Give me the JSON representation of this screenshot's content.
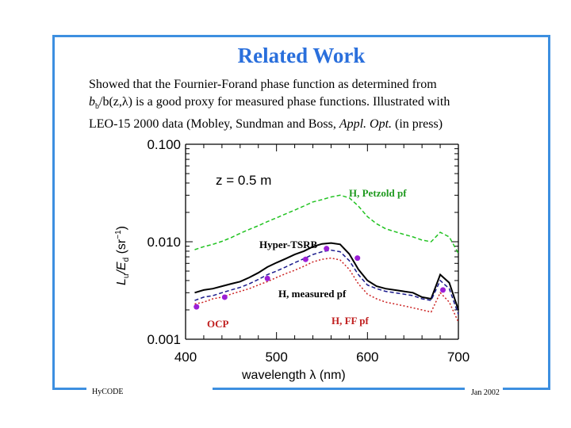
{
  "slide": {
    "title": "Related Work",
    "body_line1": "Showed that the Fournier-Forand phase function as determined from",
    "body_line2": "b",
    "body_line2_sub1": "b",
    "body_line2_b": "/b(z,",
    "body_line2_glyph": "λ",
    "body_line2_rest": ") is a good proxy for measured phase functions.  Illustrated with",
    "body_line3": "LEO-15 2000 data (Mobley, Sundman and Boss, ",
    "body_line3_italic": "Appl. Opt.",
    "body_line3_rest": " (in press)",
    "footer_left": "HyCODE",
    "footer_right": "Jan 2002"
  },
  "colors": {
    "frame": "#3d8fe0",
    "title": "#2a6fdc",
    "petzold": "#22c322",
    "hypertsrb": "#000000",
    "measured": "#1a1a8c",
    "ff": "#cc2222",
    "ocp": "#9b1fd6",
    "annotation_green": "#1f9a1f",
    "annotation_red": "#c02020"
  },
  "chart_data": {
    "type": "line",
    "xlabel": "wavelength  λ  (nm)",
    "ylabel": "L_u / E_d (sr^-1)",
    "ylabel_parts": [
      "L",
      "u",
      "/E",
      "d",
      " (sr",
      "−1",
      ")"
    ],
    "xlim": [
      400,
      700
    ],
    "ylim": [
      0.001,
      0.1
    ],
    "yscale": "log",
    "x_ticks": [
      "400",
      "500",
      "600",
      "700"
    ],
    "y_ticks": [
      "0.001",
      "0.010",
      "0.100"
    ],
    "inner_label": "z = 0.5 m",
    "annotations": {
      "petzold": "H, Petzold pf",
      "hypertsrb": "Hyper-TSRB",
      "measured": "H, measured pf",
      "ff": "H, FF pf",
      "ocp": "OCP"
    },
    "series": [
      {
        "name": "H, Petzold pf",
        "style": "dashed",
        "x": [
          410,
          420,
          430,
          440,
          450,
          460,
          470,
          480,
          490,
          500,
          510,
          520,
          530,
          540,
          550,
          560,
          570,
          580,
          590,
          600,
          610,
          620,
          630,
          640,
          650,
          660,
          670,
          680,
          690,
          700
        ],
        "y": [
          0.0083,
          0.0089,
          0.0094,
          0.0101,
          0.011,
          0.0122,
          0.0134,
          0.0146,
          0.0161,
          0.0176,
          0.0193,
          0.0211,
          0.0232,
          0.0256,
          0.027,
          0.0288,
          0.03,
          0.0282,
          0.0232,
          0.0181,
          0.0153,
          0.0136,
          0.0127,
          0.0119,
          0.0112,
          0.0104,
          0.01,
          0.0125,
          0.0112,
          0.0076
        ]
      },
      {
        "name": "Hyper-TSRB",
        "style": "solid",
        "x": [
          410,
          420,
          430,
          440,
          450,
          460,
          470,
          480,
          490,
          500,
          510,
          520,
          530,
          540,
          550,
          560,
          570,
          580,
          590,
          600,
          610,
          620,
          630,
          640,
          650,
          660,
          670,
          680,
          690,
          700
        ],
        "y": [
          0.003,
          0.0032,
          0.0033,
          0.0035,
          0.0037,
          0.0039,
          0.0043,
          0.0048,
          0.0055,
          0.0061,
          0.0067,
          0.0074,
          0.008,
          0.0089,
          0.0095,
          0.0097,
          0.0094,
          0.0075,
          0.0052,
          0.004,
          0.0035,
          0.0033,
          0.0032,
          0.0031,
          0.003,
          0.0027,
          0.0026,
          0.0046,
          0.0038,
          0.002
        ]
      },
      {
        "name": "H, measured pf",
        "style": "dashed",
        "x": [
          410,
          420,
          430,
          440,
          450,
          460,
          470,
          480,
          490,
          500,
          510,
          520,
          530,
          540,
          550,
          560,
          570,
          580,
          590,
          600,
          610,
          620,
          630,
          640,
          650,
          660,
          670,
          680,
          690,
          700
        ],
        "y": [
          0.0025,
          0.0027,
          0.0028,
          0.003,
          0.0032,
          0.0034,
          0.0037,
          0.0041,
          0.0046,
          0.005,
          0.0055,
          0.0061,
          0.0067,
          0.0074,
          0.0079,
          0.0082,
          0.0079,
          0.0064,
          0.0046,
          0.0036,
          0.0033,
          0.0031,
          0.003,
          0.0029,
          0.0028,
          0.0026,
          0.0025,
          0.004,
          0.0033,
          0.0018
        ]
      },
      {
        "name": "H, FF pf",
        "style": "dotted",
        "x": [
          410,
          420,
          430,
          440,
          450,
          460,
          470,
          480,
          490,
          500,
          510,
          520,
          530,
          540,
          550,
          560,
          570,
          580,
          590,
          600,
          610,
          620,
          630,
          640,
          650,
          660,
          670,
          680,
          690,
          700
        ],
        "y": [
          0.0023,
          0.0024,
          0.0026,
          0.0027,
          0.0029,
          0.0031,
          0.0033,
          0.0036,
          0.0039,
          0.0043,
          0.0047,
          0.0051,
          0.0056,
          0.0062,
          0.0066,
          0.0068,
          0.0065,
          0.0052,
          0.0037,
          0.0029,
          0.0026,
          0.0024,
          0.0023,
          0.0022,
          0.0021,
          0.002,
          0.0019,
          0.003,
          0.0024,
          0.0015
        ]
      },
      {
        "name": "OCP",
        "style": "markers",
        "x": [
          412,
          443,
          490,
          532,
          555,
          589,
          683
        ],
        "y": [
          0.00215,
          0.0027,
          0.0042,
          0.0066,
          0.0085,
          0.0068,
          0.0032
        ]
      }
    ]
  }
}
